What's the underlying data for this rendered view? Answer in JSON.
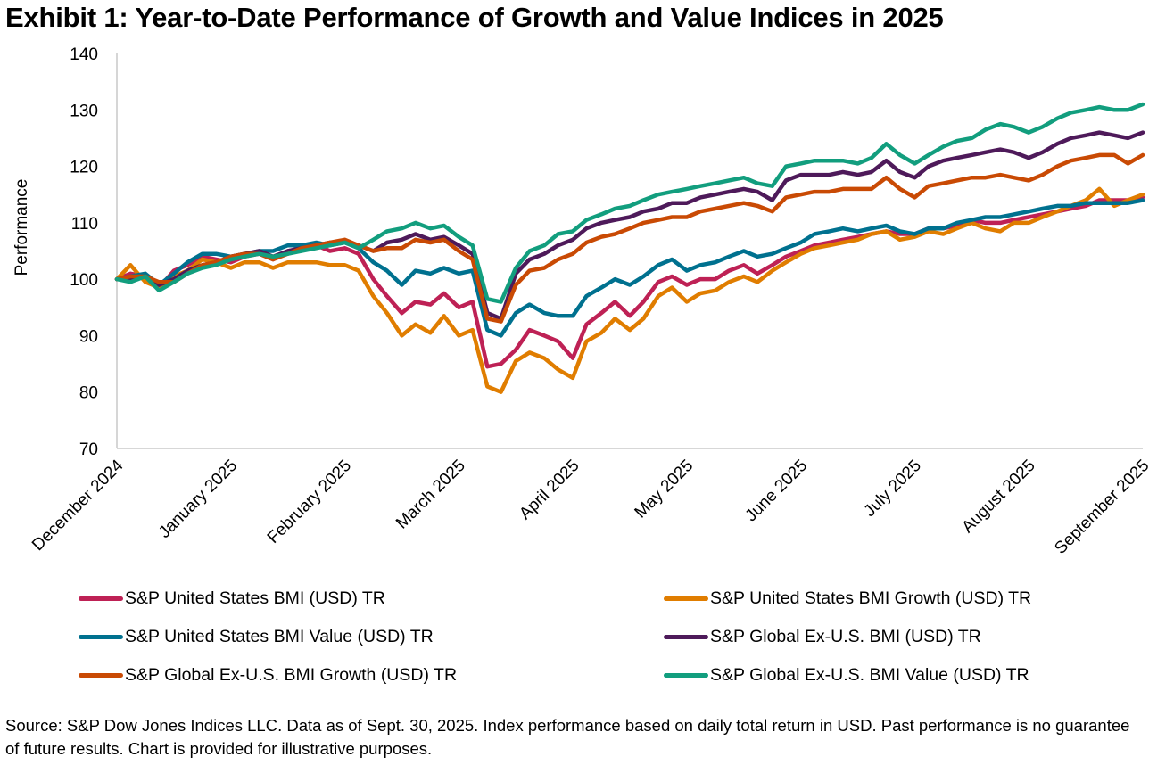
{
  "title": "Exhibit 1: Year-to-Date Performance of Growth and Value Indices in 2025",
  "source_note": "Source: S&P Dow Jones Indices LLC. Data as of Sept. 30, 2025. Index performance based on daily total return in USD. Past performance is no guarantee of future results. Chart is provided for illustrative purposes.",
  "chart_data": {
    "type": "line",
    "title": "Exhibit 1: Year-to-Date Performance of Growth and Value Indices in 2025",
    "xlabel": "",
    "ylabel": "Performance",
    "ylim": [
      70,
      140
    ],
    "yticks": [
      70,
      80,
      90,
      100,
      110,
      120,
      130,
      140
    ],
    "xlim": [
      0,
      9
    ],
    "x_tick_positions": [
      0,
      1,
      2,
      3,
      4,
      5,
      6,
      7,
      8,
      9
    ],
    "x_tick_labels": [
      "December 2024",
      "January 2025",
      "February 2025",
      "March 2025",
      "April 2025",
      "May 2025",
      "June 2025",
      "July 2025",
      "August 2025",
      "September 2025"
    ],
    "grid": false,
    "legend_position": "bottom",
    "x": [
      0,
      0.12,
      0.25,
      0.37,
      0.5,
      0.62,
      0.75,
      0.87,
      1.0,
      1.12,
      1.25,
      1.37,
      1.5,
      1.62,
      1.75,
      1.87,
      2.0,
      2.12,
      2.25,
      2.37,
      2.5,
      2.62,
      2.75,
      2.87,
      3.0,
      3.12,
      3.25,
      3.37,
      3.5,
      3.62,
      3.75,
      3.87,
      4.0,
      4.12,
      4.25,
      4.37,
      4.5,
      4.62,
      4.75,
      4.87,
      5.0,
      5.12,
      5.25,
      5.37,
      5.5,
      5.62,
      5.75,
      5.87,
      6.0,
      6.12,
      6.25,
      6.37,
      6.5,
      6.62,
      6.75,
      6.87,
      7.0,
      7.12,
      7.25,
      7.37,
      7.5,
      7.62,
      7.75,
      7.87,
      8.0,
      8.12,
      8.25,
      8.37,
      8.5,
      8.62,
      8.75,
      8.87,
      9.0
    ],
    "series": [
      {
        "name": "S&P United States BMI (USD) TR",
        "color": "#BE2155",
        "values": [
          100,
          101,
          100.5,
          98.5,
          101.5,
          102.5,
          104,
          103.5,
          103,
          104,
          104.5,
          103.5,
          105,
          105.5,
          106,
          105,
          105.5,
          104.5,
          100,
          97,
          94,
          96,
          95.5,
          97.5,
          95,
          96,
          84.5,
          85,
          87.5,
          91,
          90,
          89,
          86,
          92,
          94,
          96,
          93.5,
          96,
          99.5,
          100.5,
          99,
          100,
          100,
          101.5,
          102.5,
          101,
          102.5,
          104,
          105,
          106,
          106.5,
          107,
          107.5,
          108,
          108.5,
          108,
          108,
          109,
          109,
          109.5,
          110.5,
          110,
          110,
          110.5,
          111,
          111.5,
          112,
          112.5,
          113,
          114,
          114,
          114,
          114.5
        ]
      },
      {
        "name": "S&P United States BMI Growth (USD) TR",
        "color": "#E07D00",
        "values": [
          100,
          102.5,
          99.5,
          98.5,
          100.5,
          101.5,
          103.5,
          103,
          102,
          103,
          103,
          102,
          103,
          103,
          103,
          102.5,
          102.5,
          101.5,
          97,
          94,
          90,
          92,
          90.5,
          93.5,
          90,
          91,
          81,
          80,
          85.5,
          87,
          86,
          84,
          82.5,
          89,
          90.5,
          93,
          91,
          93,
          97,
          98.5,
          96,
          97.5,
          98,
          99.5,
          100.5,
          99.5,
          101.5,
          103,
          104.5,
          105.5,
          106,
          106.5,
          107,
          108,
          108.5,
          107,
          107.5,
          108.5,
          108,
          109,
          110,
          109,
          108.5,
          110,
          110,
          111,
          112,
          113,
          114,
          116,
          113,
          114,
          115
        ]
      },
      {
        "name": "S&P United States BMI Value (USD) TR",
        "color": "#00718F",
        "values": [
          100,
          100.5,
          101,
          99,
          101,
          103,
          104.5,
          104.5,
          104,
          104.5,
          105,
          105,
          106,
          106,
          106.5,
          106,
          106.5,
          105.5,
          103,
          101.5,
          99,
          101.5,
          101,
          102,
          101,
          101.5,
          91,
          90,
          94,
          95.5,
          94,
          93.5,
          93.5,
          97,
          98.5,
          100,
          99,
          100.5,
          102.5,
          103.5,
          101.5,
          102.5,
          103,
          104,
          105,
          104,
          104.5,
          105.5,
          106.5,
          108,
          108.5,
          109,
          108.5,
          109,
          109.5,
          108.5,
          108,
          109,
          109,
          110,
          110.5,
          111,
          111,
          111.5,
          112,
          112.5,
          113,
          113,
          113.5,
          113.5,
          113.5,
          113.5,
          114
        ]
      },
      {
        "name": "S&P Global Ex-U.S. BMI (USD) TR",
        "color": "#4E1A5A",
        "values": [
          100,
          100,
          100.5,
          99,
          100,
          101.5,
          102.5,
          103,
          104,
          104.5,
          105,
          104,
          105,
          105.5,
          106,
          106.5,
          106.5,
          106,
          105,
          106.5,
          107,
          108,
          107,
          107.5,
          106,
          104.5,
          94,
          93,
          101,
          103.5,
          104.5,
          106,
          107,
          109,
          110,
          110.5,
          111,
          112,
          112.5,
          113.5,
          113.5,
          114.5,
          115,
          115.5,
          116,
          115.5,
          114,
          117.5,
          118.5,
          118.5,
          118.5,
          119,
          118.5,
          119,
          121,
          119,
          118,
          120,
          121,
          121.5,
          122,
          122.5,
          123,
          122.5,
          121.5,
          122.5,
          124,
          125,
          125.5,
          126,
          125.5,
          125,
          126
        ]
      },
      {
        "name": "S&P Global Ex-U.S. BMI Growth (USD) TR",
        "color": "#C94A04",
        "values": [
          100,
          100.5,
          100.5,
          99.5,
          99.5,
          101,
          102.5,
          103,
          104,
          104.5,
          104.5,
          103.5,
          104.5,
          105.5,
          106,
          106.5,
          107,
          106,
          105,
          105.5,
          105.5,
          107,
          106.5,
          107,
          105,
          103.5,
          93,
          92.5,
          99,
          101.5,
          102,
          103.5,
          104.5,
          106.5,
          107.5,
          108,
          109,
          110,
          110.5,
          111,
          111,
          112,
          112.5,
          113,
          113.5,
          113,
          112,
          114.5,
          115,
          115.5,
          115.5,
          116,
          116,
          116,
          118,
          116,
          114.5,
          116.5,
          117,
          117.5,
          118,
          118,
          118.5,
          118,
          117.5,
          118.5,
          120,
          121,
          121.5,
          122,
          122,
          120.5,
          122
        ]
      },
      {
        "name": "S&P Global Ex-U.S. BMI Value (USD) TR",
        "color": "#129E7E",
        "values": [
          100,
          99.5,
          100.5,
          98,
          99.5,
          101,
          102,
          102.5,
          103.5,
          104,
          104.5,
          104,
          104.5,
          105,
          105.5,
          106,
          106.5,
          105.5,
          107,
          108.5,
          109,
          110,
          109,
          109.5,
          107.5,
          106,
          96.5,
          96,
          102,
          105,
          106,
          108,
          108.5,
          110.5,
          111.5,
          112.5,
          113,
          114,
          115,
          115.5,
          116,
          116.5,
          117,
          117.5,
          118,
          117,
          116.5,
          120,
          120.5,
          121,
          121,
          121,
          120.5,
          121.5,
          124,
          122,
          120.5,
          122,
          123.5,
          124.5,
          125,
          126.5,
          127.5,
          127,
          126,
          127,
          128.5,
          129.5,
          130,
          130.5,
          130,
          130,
          131
        ]
      }
    ]
  }
}
